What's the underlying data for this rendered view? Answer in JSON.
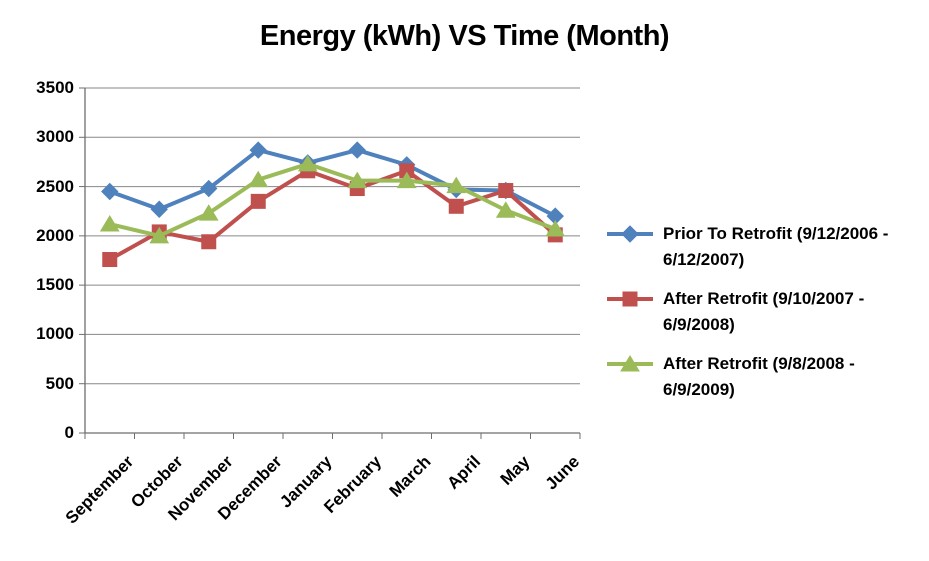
{
  "title": "Energy (kWh) VS Time (Month)",
  "chart_data": {
    "type": "line",
    "title": "Energy (kWh) VS Time (Month)",
    "categories": [
      "September",
      "October",
      "November",
      "December",
      "January",
      "February",
      "March",
      "April",
      "May",
      "June"
    ],
    "series": [
      {
        "name": "Prior To Retrofit (9/12/2006 - 6/12/2007)",
        "color": "#4F81BD",
        "marker": "diamond",
        "values": [
          2450,
          2270,
          2480,
          2870,
          2740,
          2870,
          2720,
          2470,
          2460,
          2200
        ]
      },
      {
        "name": "After Retrofit (9/10/2007 - 6/9/2008)",
        "color": "#C0504D",
        "marker": "square",
        "values": [
          1760,
          2040,
          1940,
          2350,
          2660,
          2480,
          2660,
          2300,
          2460,
          2010
        ]
      },
      {
        "name": "After Retrofit (9/8/2008 - 6/9/2009)",
        "color": "#9BBB59",
        "marker": "triangle",
        "values": [
          2120,
          2000,
          2230,
          2570,
          2730,
          2560,
          2560,
          2510,
          2260,
          2070
        ]
      }
    ],
    "xlabel": "",
    "ylabel": "",
    "ylim": [
      0,
      3500
    ],
    "yticks": [
      0,
      500,
      1000,
      1500,
      2000,
      2500,
      3000,
      3500
    ],
    "x_tick_rotation": -45,
    "grid": true,
    "legend_position": "right"
  },
  "legend": {
    "entries": [
      {
        "line1": "Prior To Retrofit (9/12/2006 -",
        "line2": "6/12/2007)"
      },
      {
        "line1": "After Retrofit (9/10/2007 -",
        "line2": "6/9/2008)"
      },
      {
        "line1": "After Retrofit (9/8/2008 -",
        "line2": "6/9/2009)"
      }
    ]
  },
  "colors": {
    "series_blue": "#4F81BD",
    "series_red": "#C0504D",
    "series_green": "#9BBB59",
    "gridline": "#878787",
    "axis": "#6E6E6E",
    "text": "#000000",
    "background": "#FFFFFF"
  }
}
